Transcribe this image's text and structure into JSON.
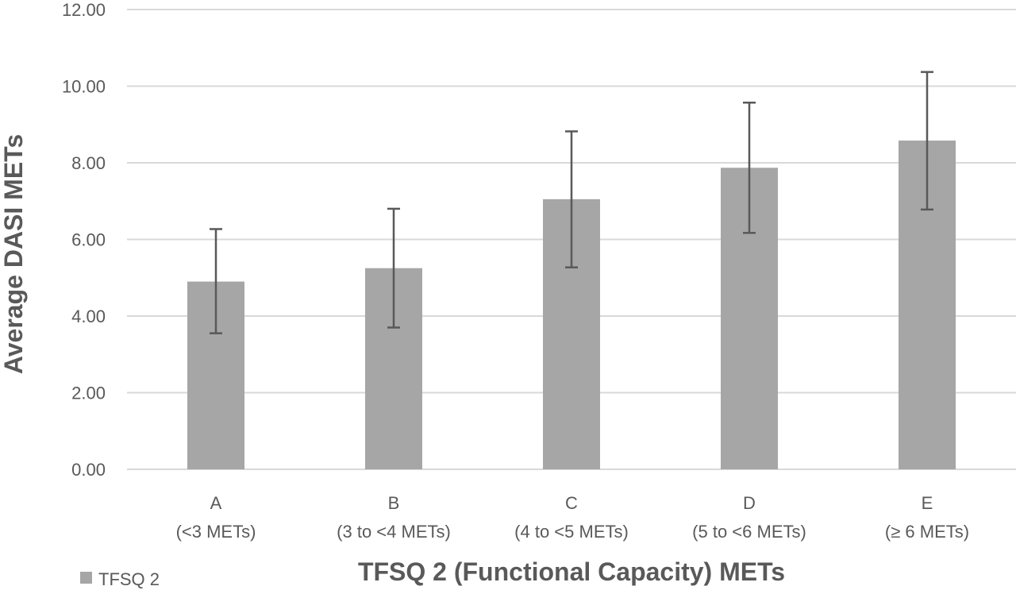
{
  "chart_data": {
    "type": "bar",
    "xlabel": "TFSQ 2 (Functional Capacity) METs",
    "ylabel": "Average DASI METs",
    "ylim": [
      0,
      12
    ],
    "yticks": [
      "0.00",
      "2.00",
      "4.00",
      "6.00",
      "8.00",
      "10.00",
      "12.00"
    ],
    "categories": [
      {
        "code": "A",
        "range": "(<3 METs)"
      },
      {
        "code": "B",
        "range": "(3 to <4 METs)"
      },
      {
        "code": "C",
        "range": "(4 to <5 METs)"
      },
      {
        "code": "D",
        "range": "(5 to <6 METs)"
      },
      {
        "code": "E",
        "range": "(≥ 6 METs)"
      }
    ],
    "series": [
      {
        "name": "TFSQ 2",
        "color": "#a6a6a6",
        "values": [
          4.9,
          5.25,
          7.05,
          7.87,
          8.58
        ],
        "error_low": [
          3.55,
          3.7,
          5.27,
          6.17,
          6.78
        ],
        "error_high": [
          6.27,
          6.8,
          8.82,
          9.57,
          10.37
        ]
      }
    ],
    "grid": true,
    "legend_position": "bottom-left"
  }
}
